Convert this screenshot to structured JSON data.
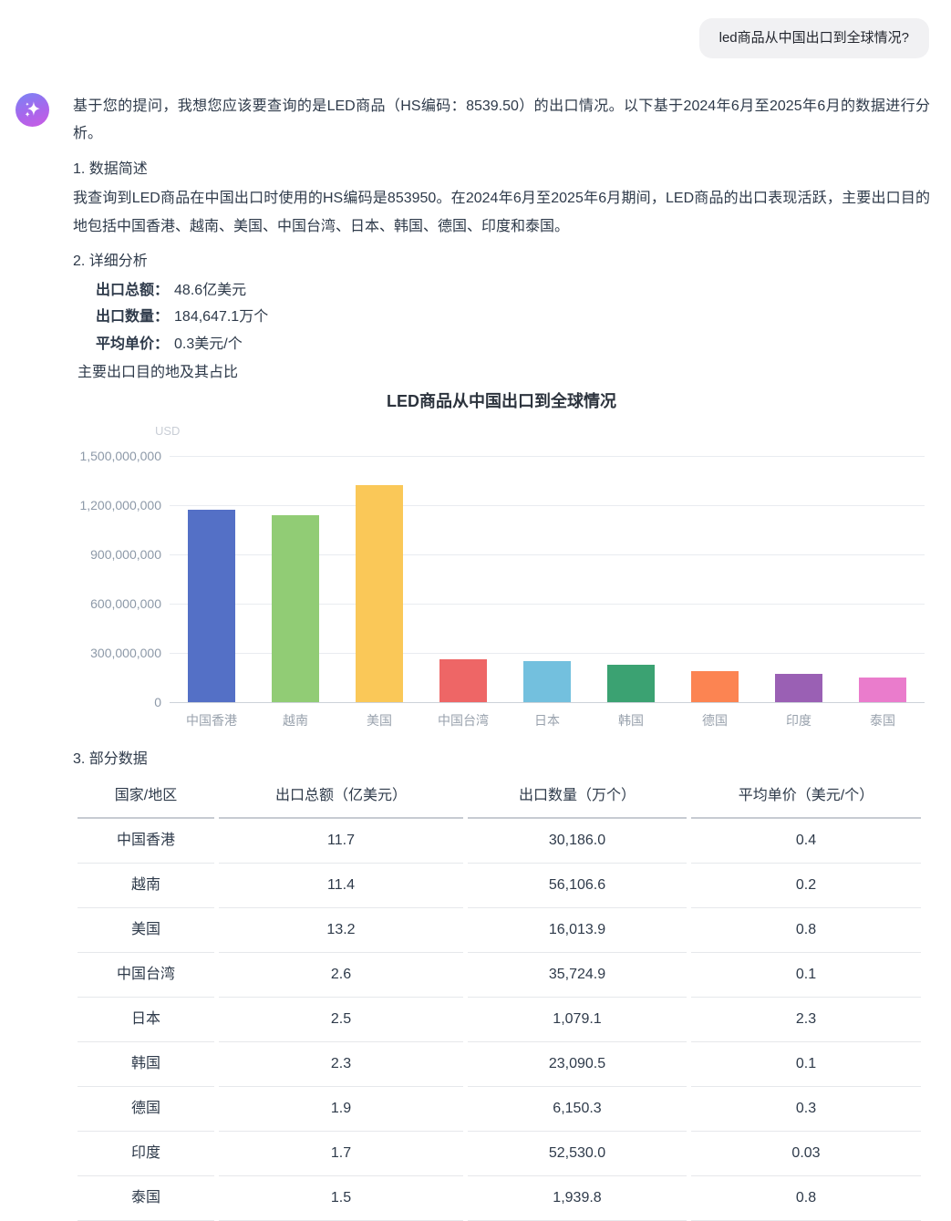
{
  "user_message": "led商品从中国出口到全球情况?",
  "assistant": {
    "intro": "基于您的提问，我想您应该要查询的是LED商品（HS编码：8539.50）的出口情况。以下基于2024年6月至2025年6月的数据进行分析。",
    "s1_heading": "1. 数据简述",
    "s1_body": "我查询到LED商品在中国出口时使用的HS编码是853950。在2024年6月至2025年6月期间，LED商品的出口表现活跃，主要出口目的地包括中国香港、越南、美国、中国台湾、日本、韩国、德国、印度和泰国。",
    "s2_heading": "2. 详细分析",
    "s2_stats": [
      {
        "label": "出口总额：",
        "value": "48.6亿美元"
      },
      {
        "label": "出口数量：",
        "value": "184,647.1万个"
      },
      {
        "label": "平均单价：",
        "value": "0.3美元/个"
      }
    ],
    "s2_subtitle": "主要出口目的地及其占比",
    "s3_heading": "3. 部分数据"
  },
  "chart_data": {
    "type": "bar",
    "title": "LED商品从中国出口到全球情况",
    "ylabel": "USD",
    "xlabel": "",
    "categories": [
      "中国香港",
      "越南",
      "美国",
      "中国台湾",
      "日本",
      "韩国",
      "德国",
      "印度",
      "泰国"
    ],
    "values": [
      1170000000,
      1140000000,
      1320000000,
      260000000,
      250000000,
      230000000,
      190000000,
      170000000,
      150000000
    ],
    "bar_colors": [
      "#5470C6",
      "#91CC75",
      "#FAC858",
      "#EE6666",
      "#73C0DE",
      "#3BA272",
      "#FC8452",
      "#9A60B4",
      "#EA7CCC"
    ],
    "ylim": [
      0,
      1500000000
    ],
    "yticks": [
      1500000000,
      1200000000,
      900000000,
      600000000,
      300000000,
      0
    ],
    "ytick_labels": [
      "1,500,000,000",
      "1,200,000,000",
      "900,000,000",
      "600,000,000",
      "300,000,000",
      "0"
    ],
    "grid": true,
    "legend": "none"
  },
  "table": {
    "headers": [
      "国家/地区",
      "出口总额（亿美元）",
      "出口数量（万个）",
      "平均单价（美元/个）"
    ],
    "rows": [
      [
        "中国香港",
        "11.7",
        "30,186.0",
        "0.4"
      ],
      [
        "越南",
        "11.4",
        "56,106.6",
        "0.2"
      ],
      [
        "美国",
        "13.2",
        "16,013.9",
        "0.8"
      ],
      [
        "中国台湾",
        "2.6",
        "35,724.9",
        "0.1"
      ],
      [
        "日本",
        "2.5",
        "1,079.1",
        "2.3"
      ],
      [
        "韩国",
        "2.3",
        "23,090.5",
        "0.1"
      ],
      [
        "德国",
        "1.9",
        "6,150.3",
        "0.3"
      ],
      [
        "印度",
        "1.7",
        "52,530.0",
        "0.03"
      ],
      [
        "泰国",
        "1.5",
        "1,939.8",
        "0.8"
      ]
    ]
  }
}
